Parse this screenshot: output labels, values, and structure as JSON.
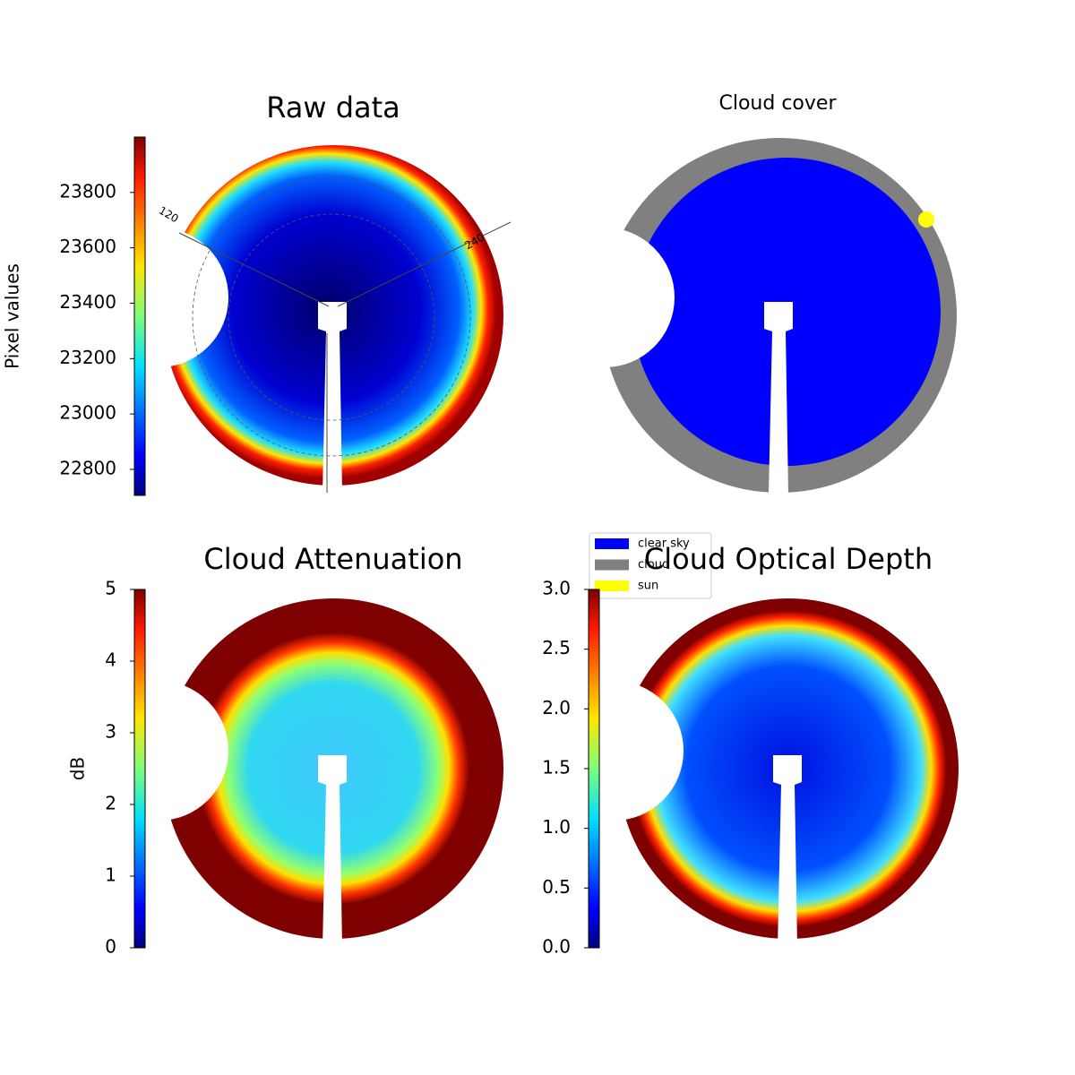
{
  "chart_data": [
    {
      "type": "image",
      "title": "Raw data",
      "colorbar_label": "Pixel values",
      "colormap": "jet",
      "ylim": [
        22706,
        24000
      ],
      "yticks": [
        22800,
        23000,
        23200,
        23400,
        23600,
        23800
      ],
      "annotations": [
        "120",
        "240"
      ]
    },
    {
      "type": "image",
      "title": "Cloud cover",
      "legend": [
        {
          "name": "clear sky",
          "color": "#0000ff"
        },
        {
          "name": "cloud",
          "color": "#808080"
        },
        {
          "name": "sun",
          "color": "#ffff00"
        }
      ]
    },
    {
      "type": "image",
      "title": "Cloud Attenuation",
      "colorbar_label": "dB",
      "colormap": "jet",
      "ylim": [
        0,
        5
      ],
      "yticks": [
        0,
        1,
        2,
        3,
        4,
        5
      ]
    },
    {
      "type": "image",
      "title": "Cloud Optical Depth",
      "colormap": "jet",
      "ylim": [
        0,
        3
      ],
      "yticks": [
        {
          "value": 0,
          "label": "0.0"
        },
        0.5,
        {
          "value": 1,
          "label": "1.0"
        },
        1.5,
        {
          "value": 2,
          "label": "2.0"
        },
        2.5,
        {
          "value": 3,
          "label": "3.0"
        }
      ]
    }
  ]
}
